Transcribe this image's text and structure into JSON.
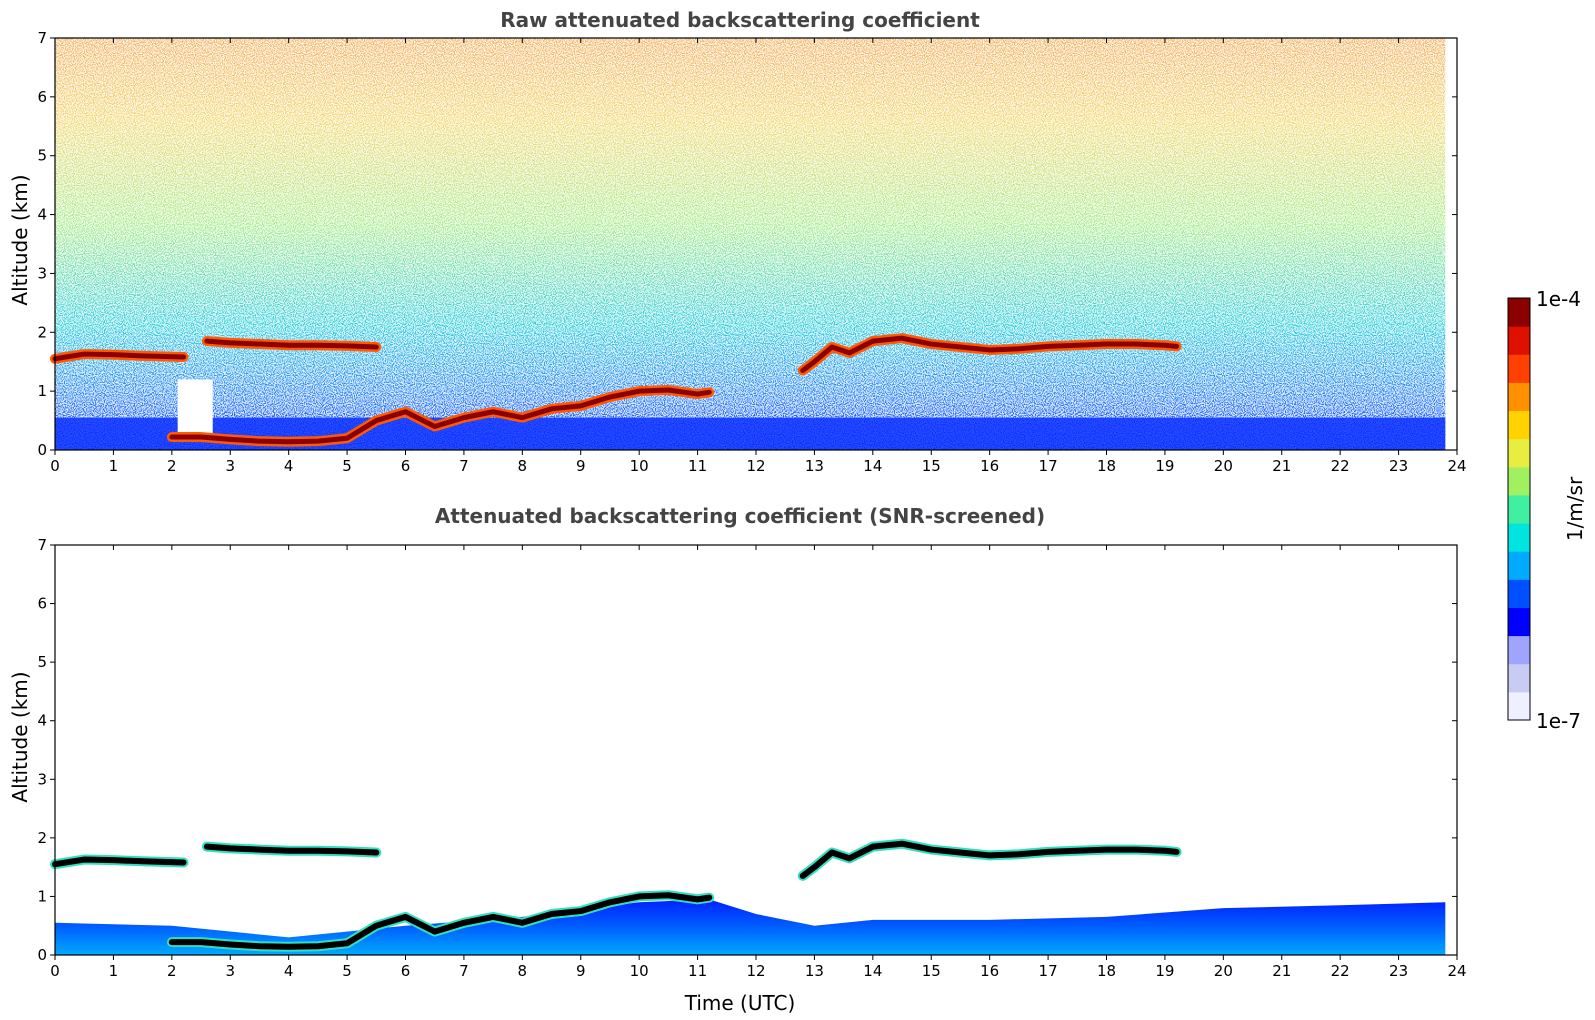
{
  "chart_data": [
    {
      "type": "heatmap",
      "title": "Raw attenuated backscattering coefficient",
      "xlabel": "",
      "ylabel": "Altitude (km)",
      "xlim": [
        0,
        24
      ],
      "ylim": [
        0,
        7
      ],
      "xticks": [
        "0",
        "1",
        "2",
        "3",
        "4",
        "5",
        "6",
        "7",
        "8",
        "9",
        "10",
        "11",
        "12",
        "13",
        "14",
        "15",
        "16",
        "17",
        "18",
        "19",
        "20",
        "21",
        "22",
        "23",
        "24"
      ],
      "yticks": [
        "0",
        "1",
        "2",
        "3",
        "4",
        "5",
        "6",
        "7"
      ],
      "cloud_layers": [
        {
          "x": [
            0,
            0.5,
            1,
            1.5,
            2.2
          ],
          "y": [
            1.55,
            1.63,
            1.62,
            1.6,
            1.58
          ]
        },
        {
          "x": [
            2.6,
            3,
            3.5,
            4,
            4.5,
            5,
            5.5
          ],
          "y": [
            1.85,
            1.82,
            1.8,
            1.78,
            1.78,
            1.77,
            1.75
          ]
        },
        {
          "x": [
            2.0,
            2.5,
            3,
            3.5,
            4,
            4.5,
            5,
            5.5,
            6,
            6.5,
            7,
            7.5,
            8,
            8.5,
            9,
            9.5,
            10,
            10.5,
            11,
            11.2
          ],
          "y": [
            0.22,
            0.22,
            0.18,
            0.15,
            0.14,
            0.15,
            0.2,
            0.5,
            0.65,
            0.4,
            0.55,
            0.65,
            0.55,
            0.7,
            0.75,
            0.9,
            1.0,
            1.02,
            0.95,
            0.98
          ]
        },
        {
          "x": [
            12.8,
            13,
            13.3,
            13.6,
            14,
            14.5,
            15,
            15.5,
            16,
            16.5,
            17,
            17.5,
            18,
            18.5,
            19,
            19.2
          ],
          "y": [
            1.35,
            1.5,
            1.75,
            1.65,
            1.85,
            1.9,
            1.8,
            1.75,
            1.7,
            1.72,
            1.76,
            1.78,
            1.8,
            1.8,
            1.78,
            1.76
          ]
        }
      ]
    },
    {
      "type": "heatmap",
      "title": "Attenuated backscattering coefficient (SNR-screened)",
      "xlabel": "Time (UTC)",
      "ylabel": "Altitude (km)",
      "xlim": [
        0,
        24
      ],
      "ylim": [
        0,
        7
      ],
      "xticks": [
        "0",
        "1",
        "2",
        "3",
        "4",
        "5",
        "6",
        "7",
        "8",
        "9",
        "10",
        "11",
        "12",
        "13",
        "14",
        "15",
        "16",
        "17",
        "18",
        "19",
        "20",
        "21",
        "22",
        "23",
        "24"
      ],
      "yticks": [
        "0",
        "1",
        "2",
        "3",
        "4",
        "5",
        "6",
        "7"
      ],
      "boundary_layer_top": {
        "x": [
          0,
          2,
          4,
          6,
          8,
          10,
          11.2,
          12,
          13,
          14,
          16,
          18,
          20,
          22,
          23.8
        ],
        "y": [
          0.55,
          0.5,
          0.3,
          0.5,
          0.65,
          0.9,
          0.95,
          0.7,
          0.5,
          0.6,
          0.6,
          0.65,
          0.8,
          0.85,
          0.9
        ]
      }
    }
  ],
  "colorbar": {
    "label": "1/m/sr",
    "max_label": "1e-4",
    "min_label": "1e-7",
    "colors": [
      "#eef0ff",
      "#c8ccf5",
      "#9fa5ff",
      "#0000ff",
      "#0050ff",
      "#00aaff",
      "#00e5e0",
      "#40f0a0",
      "#a0f060",
      "#e8ee40",
      "#ffd200",
      "#ff9000",
      "#ff4000",
      "#e01000",
      "#8b0000"
    ]
  }
}
